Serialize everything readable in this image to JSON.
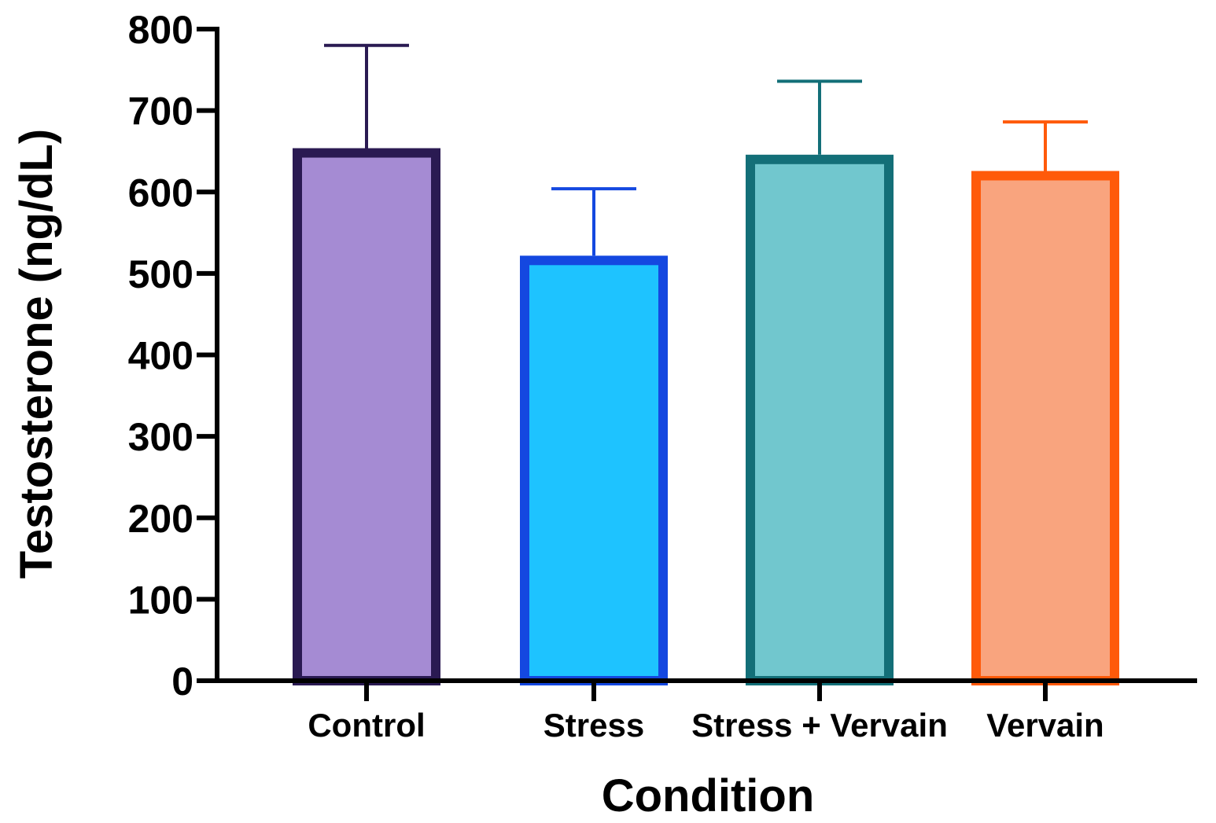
{
  "chart_data": {
    "type": "bar",
    "title": "",
    "xlabel": "Condition",
    "ylabel": "Testosterone (ng/dL)",
    "ylim": [
      0,
      800
    ],
    "yticks": [
      0,
      100,
      200,
      300,
      400,
      500,
      600,
      700,
      800
    ],
    "grid": false,
    "categories": [
      "Control",
      "Stress",
      "Stress + Vervain",
      "Vervain"
    ],
    "values": [
      648,
      516,
      640,
      620
    ],
    "error_upper": [
      780,
      604,
      736,
      686
    ],
    "colors": {
      "fill": [
        "#a58bd3",
        "#1ec3ff",
        "#71c7ce",
        "#f9a47e"
      ],
      "stroke": [
        "#2a1a52",
        "#1448e0",
        "#136f78",
        "#ff5a0a"
      ]
    }
  }
}
